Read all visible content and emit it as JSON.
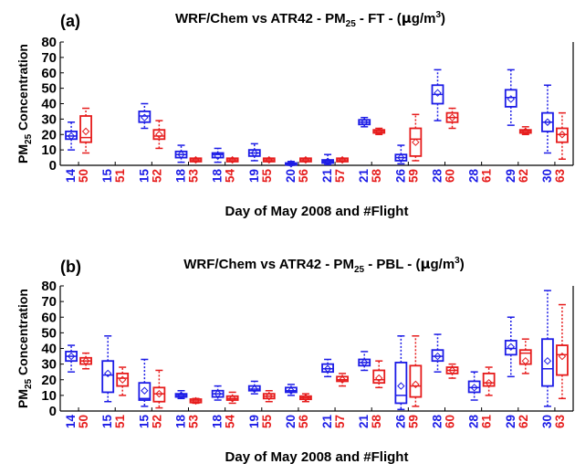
{
  "colors": {
    "model": "#1c1ce6",
    "obs": "#e61c1c",
    "axis": "#000000"
  },
  "chart_data": [
    {
      "type": "box",
      "panel_label": "(a)",
      "title_parts": [
        "WRF/Chem vs ATR42 - PM",
        "25",
        " - FT - (",
        "μ",
        "g/m",
        "3",
        ")"
      ],
      "ylabel_parts": [
        "PM",
        "25",
        " Concentration"
      ],
      "xlabel": "Day of May 2008 and #Flight",
      "ylim": [
        0,
        80
      ],
      "yticks": [
        0,
        10,
        20,
        30,
        40,
        50,
        60,
        70,
        80
      ],
      "days": [
        "14",
        "15",
        "15",
        "18",
        "18",
        "19",
        "20",
        "21",
        "21",
        "26",
        "28",
        "28",
        "29",
        "30"
      ],
      "flights": [
        "50",
        "51",
        "52",
        "53",
        "54",
        "55",
        "56",
        "57",
        "58",
        "59",
        "60",
        "61",
        "62",
        "63"
      ],
      "model": [
        [
          10,
          17,
          19,
          22,
          28,
          19
        ],
        null,
        [
          24,
          28,
          32,
          35,
          40,
          31
        ],
        [
          2,
          5,
          7,
          9,
          13,
          7
        ],
        [
          2,
          5,
          7,
          8,
          11,
          6
        ],
        [
          3,
          6,
          8,
          10,
          14,
          8
        ],
        [
          0,
          0.3,
          1,
          1.5,
          2.5,
          1
        ],
        [
          0.5,
          1.5,
          2.5,
          3.5,
          7,
          2.5
        ],
        [
          25,
          26.5,
          28,
          29.5,
          31,
          28
        ],
        [
          1,
          3,
          5,
          7,
          13,
          5
        ],
        [
          29,
          40,
          46,
          52,
          62,
          47
        ],
        null,
        [
          26,
          38,
          44,
          49,
          62,
          43
        ],
        [
          8,
          22,
          28,
          34,
          52,
          28
        ]
      ],
      "obs": [
        [
          8,
          15,
          18,
          32,
          37,
          22
        ],
        null,
        [
          11,
          17,
          19,
          23,
          29,
          20
        ],
        [
          2.5,
          3,
          3.5,
          4,
          4.5,
          3.5
        ],
        [
          2.5,
          3,
          3.5,
          4,
          4.5,
          3.5
        ],
        [
          2.5,
          3,
          3.5,
          4,
          4.5,
          3.5
        ],
        [
          2.5,
          3,
          3.5,
          4,
          4.5,
          3.5
        ],
        [
          2.5,
          3,
          3.5,
          4,
          4.5,
          3.5
        ],
        [
          20,
          21,
          22,
          23,
          24,
          22
        ],
        [
          3,
          6,
          17,
          24,
          33,
          15
        ],
        [
          24,
          28,
          31,
          34,
          37,
          31
        ],
        null,
        [
          20,
          21,
          22,
          23,
          25,
          22
        ],
        [
          4,
          15,
          20,
          24,
          34,
          20
        ]
      ]
    },
    {
      "type": "box",
      "panel_label": "(b)",
      "title_parts": [
        "WRF/Chem vs ATR42 - PM",
        "25",
        " - PBL - (",
        "μ",
        "g/m",
        "3",
        ")"
      ],
      "ylabel_parts": [
        "PM",
        "25",
        " Concentration"
      ],
      "xlabel": "Day of May 2008 and #Flight",
      "ylim": [
        0,
        80
      ],
      "yticks": [
        0,
        10,
        20,
        30,
        40,
        50,
        60,
        70,
        80
      ],
      "days": [
        "14",
        "15",
        "15",
        "18",
        "18",
        "19",
        "20",
        "21",
        "21",
        "26",
        "28",
        "28",
        "29",
        "30"
      ],
      "flights": [
        "50",
        "51",
        "52",
        "53",
        "54",
        "55",
        "56",
        "57",
        "58",
        "59",
        "60",
        "61",
        "62",
        "63"
      ],
      "model": [
        [
          25,
          32,
          35,
          38,
          42,
          35
        ],
        [
          6,
          12,
          23,
          32,
          48,
          24
        ],
        [
          3,
          7,
          8,
          18,
          33,
          13
        ],
        [
          8,
          9,
          10,
          11,
          13,
          10
        ],
        [
          7,
          9,
          11,
          13,
          16,
          11
        ],
        [
          11,
          13,
          14,
          16,
          19,
          14
        ],
        [
          10,
          12,
          13,
          15,
          17,
          13
        ],
        [
          22,
          25,
          27,
          30,
          33,
          27
        ],
        [
          26,
          29,
          31,
          33,
          38,
          31
        ],
        [
          1,
          5,
          10,
          31,
          48,
          16
        ],
        [
          25,
          32,
          35,
          39,
          49,
          35
        ],
        [
          7,
          12,
          15,
          19,
          25,
          15
        ],
        [
          22,
          36,
          40,
          45,
          60,
          41
        ],
        [
          3,
          16,
          27,
          46,
          77,
          32
        ]
      ],
      "obs": [
        [
          27,
          30,
          32,
          34,
          37,
          32
        ],
        [
          10,
          16,
          21,
          24,
          28,
          20
        ],
        [
          2,
          6,
          11,
          15,
          26,
          11
        ],
        [
          5,
          6,
          6.5,
          7,
          8,
          6.5
        ],
        [
          5,
          7,
          8,
          9.5,
          12,
          8
        ],
        [
          6,
          8,
          9.5,
          11,
          13,
          9.5
        ],
        [
          6,
          7.5,
          8.5,
          9.5,
          11,
          8.5
        ],
        [
          16,
          19,
          20,
          22,
          24,
          20
        ],
        [
          15,
          18,
          20,
          26,
          32,
          21
        ],
        [
          3,
          9,
          16,
          29,
          48,
          17
        ],
        [
          21,
          24,
          26,
          28,
          30,
          26
        ],
        [
          10,
          16,
          18,
          24,
          28,
          18
        ],
        [
          24,
          30,
          37,
          39,
          46,
          32
        ],
        [
          8,
          23,
          36,
          42,
          68,
          35
        ]
      ]
    }
  ]
}
